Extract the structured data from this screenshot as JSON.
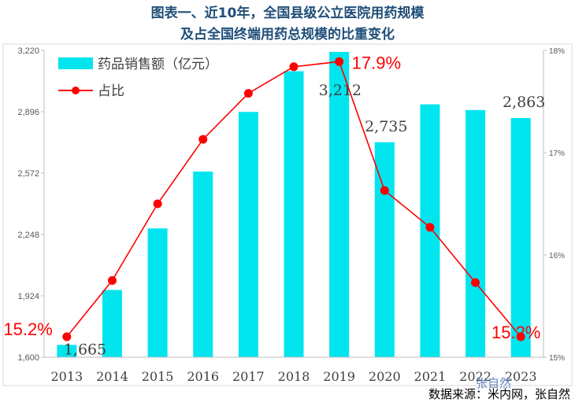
{
  "chart_data": {
    "type": "bar+line",
    "title_line1": "图表一、近10年，全国县级公立医院用药规模",
    "title_line2": "及占全国终端用药总规模的比重变化",
    "categories": [
      "2013",
      "2014",
      "2015",
      "2016",
      "2017",
      "2018",
      "2019",
      "2020",
      "2021",
      "2022",
      "2023"
    ],
    "series": [
      {
        "name": "药品销售额（亿元）",
        "type": "bar",
        "axis": "left",
        "color": "#00e5ee",
        "values": [
          1665,
          1955,
          2280,
          2580,
          2895,
          3110,
          3212,
          2735,
          2935,
          2905,
          2863
        ]
      },
      {
        "name": "占比",
        "type": "line",
        "axis": "right",
        "color": "#ff0000",
        "values": [
          15.2,
          15.75,
          16.5,
          17.13,
          17.58,
          17.84,
          17.89,
          16.63,
          16.27,
          15.73,
          15.2
        ]
      }
    ],
    "left_axis": {
      "min": 1600,
      "max": 3220,
      "ticks": [
        "1,600",
        "1,924",
        "2,248",
        "2,572",
        "2,896",
        "3,220"
      ],
      "tick_values": [
        1600,
        1924,
        2248,
        2572,
        2896,
        3220
      ]
    },
    "right_axis": {
      "min": 15,
      "max": 18,
      "ticks": [
        "15%",
        "16%",
        "17%",
        "18%"
      ],
      "tick_values": [
        15,
        16,
        17,
        18
      ]
    },
    "bar_labels": [
      {
        "index": 0,
        "text": "1,665"
      },
      {
        "index": 6,
        "text": "3,212"
      },
      {
        "index": 7,
        "text": "2,735"
      },
      {
        "index": 10,
        "text": "2,863"
      }
    ],
    "point_labels": [
      {
        "index": 0,
        "text": "15.2%"
      },
      {
        "index": 6,
        "text": "17.9%"
      },
      {
        "index": 10,
        "text": "15.2%"
      }
    ],
    "legend_position": "top-left",
    "source": "数据来源：米内网，张自然",
    "watermark": "张自然"
  }
}
